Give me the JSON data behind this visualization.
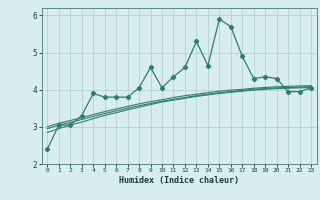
{
  "xlabel": "Humidex (Indice chaleur)",
  "x_values": [
    0,
    1,
    2,
    3,
    4,
    5,
    6,
    7,
    8,
    9,
    10,
    11,
    12,
    13,
    14,
    15,
    16,
    17,
    18,
    19,
    20,
    21,
    22,
    23
  ],
  "y_main": [
    2.4,
    3.05,
    3.05,
    3.3,
    3.9,
    3.8,
    3.8,
    3.8,
    4.05,
    4.6,
    4.05,
    4.35,
    4.6,
    5.3,
    4.65,
    5.9,
    5.7,
    4.9,
    4.3,
    4.35,
    4.3,
    3.95,
    3.95,
    4.05
  ],
  "y_line1": [
    2.85,
    2.95,
    3.05,
    3.13,
    3.22,
    3.31,
    3.38,
    3.46,
    3.53,
    3.6,
    3.67,
    3.72,
    3.77,
    3.82,
    3.86,
    3.9,
    3.93,
    3.96,
    3.99,
    4.01,
    4.03,
    4.04,
    4.05,
    4.06
  ],
  "y_line2": [
    2.95,
    3.05,
    3.12,
    3.2,
    3.28,
    3.36,
    3.43,
    3.5,
    3.57,
    3.63,
    3.69,
    3.74,
    3.79,
    3.84,
    3.88,
    3.92,
    3.95,
    3.98,
    4.01,
    4.03,
    4.05,
    4.06,
    4.07,
    4.08
  ],
  "y_line3": [
    3.0,
    3.1,
    3.17,
    3.25,
    3.33,
    3.41,
    3.48,
    3.55,
    3.62,
    3.68,
    3.73,
    3.79,
    3.84,
    3.88,
    3.92,
    3.96,
    3.99,
    4.01,
    4.04,
    4.06,
    4.08,
    4.09,
    4.1,
    4.11
  ],
  "main_color": "#2e7d6e",
  "bg_color": "#d8eeee",
  "grid_color": "#aacccc",
  "spine_color": "#5a8888",
  "ylim": [
    2.0,
    6.2
  ],
  "xlim": [
    -0.5,
    23.5
  ],
  "yticks": [
    2,
    3,
    4,
    5,
    6
  ],
  "xticks": [
    0,
    1,
    2,
    3,
    4,
    5,
    6,
    7,
    8,
    9,
    10,
    11,
    12,
    13,
    14,
    15,
    16,
    17,
    18,
    19,
    20,
    21,
    22,
    23
  ]
}
